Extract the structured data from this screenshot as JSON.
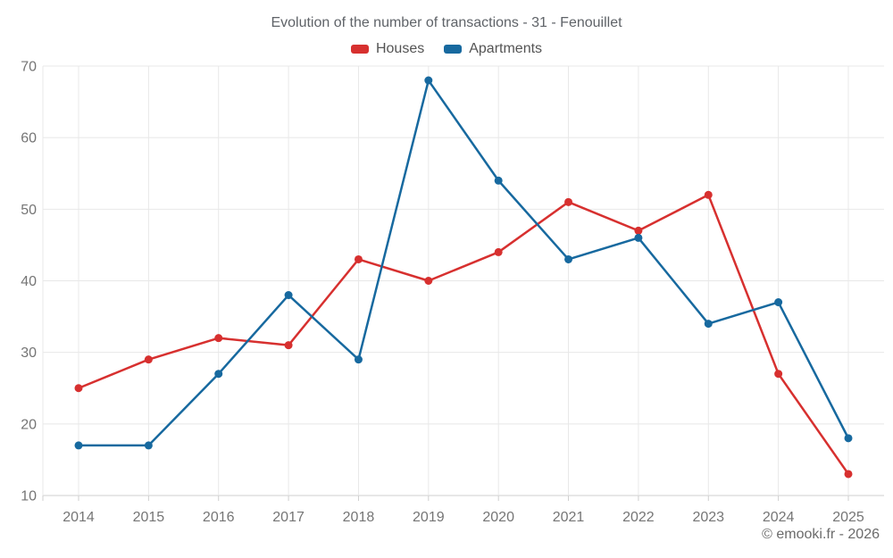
{
  "header": {
    "title": "Evolution of the number of transactions - 31 - Fenouillet"
  },
  "footer": {
    "credit": "© emooki.fr - 2026"
  },
  "chart_data": {
    "type": "line",
    "title": "Evolution of the number of transactions - 31 - Fenouillet",
    "x": [
      "2014",
      "2015",
      "2016",
      "2017",
      "2018",
      "2019",
      "2020",
      "2021",
      "2022",
      "2023",
      "2024",
      "2025"
    ],
    "series": [
      {
        "name": "Houses",
        "color": "#d7302f",
        "values": [
          25,
          29,
          32,
          31,
          43,
          40,
          44,
          51,
          47,
          52,
          27,
          13
        ]
      },
      {
        "name": "Apartments",
        "color": "#17699f",
        "values": [
          17,
          17,
          27,
          38,
          29,
          68,
          54,
          43,
          46,
          34,
          37,
          18
        ]
      }
    ],
    "xlabel": "",
    "ylabel": "",
    "ylim": [
      10,
      70
    ],
    "yticks": [
      10,
      20,
      30,
      40,
      50,
      60,
      70
    ],
    "grid": true,
    "legend_position": "top",
    "marker": "circle",
    "colors": {
      "grid": "#e8e8e8",
      "axis": "#cfcfcf",
      "tick_label": "#757575"
    }
  }
}
